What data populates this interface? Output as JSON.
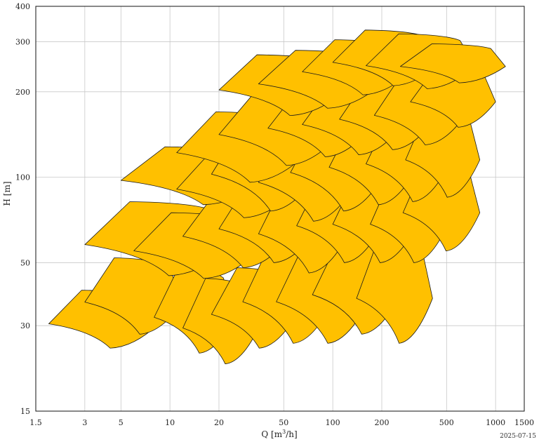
{
  "chart_data": {
    "type": "area",
    "xlabel_main": "Q [m",
    "xlabel_sup": "3",
    "xlabel_end": "/h]",
    "ylabel": "H [m]",
    "xscale": "log",
    "yscale": "log",
    "xlim": [
      1.5,
      1500
    ],
    "ylim": [
      15,
      400
    ],
    "xticks": [
      1.5,
      3,
      5,
      10,
      20,
      50,
      100,
      200,
      500,
      1000,
      1500
    ],
    "xtick_labels": [
      "1.5",
      "3",
      "5",
      "10",
      "20",
      "50",
      "100",
      "200",
      "500",
      "1000",
      "1500"
    ],
    "yticks": [
      15,
      30,
      50,
      100,
      200,
      300,
      400
    ],
    "ytick_labels": [
      "15",
      "30",
      "50",
      "100",
      "200",
      "300",
      "400"
    ],
    "grid": true,
    "fill_color": "#FFC000",
    "stroke_color": "#1a1a1a",
    "regions": [
      {
        "q": [
          1.8,
          8.5
        ],
        "h": [
          25,
          40
        ]
      },
      {
        "q": [
          3,
          12
        ],
        "h": [
          28,
          52
        ]
      },
      {
        "q": [
          8,
          25
        ],
        "h": [
          24,
          48
        ]
      },
      {
        "q": [
          12,
          35
        ],
        "h": [
          22,
          44
        ]
      },
      {
        "q": [
          18,
          60
        ],
        "h": [
          25,
          48
        ]
      },
      {
        "q": [
          28,
          100
        ],
        "h": [
          26,
          58
        ]
      },
      {
        "q": [
          45,
          165
        ],
        "h": [
          26,
          58
        ]
      },
      {
        "q": [
          75,
          260
        ],
        "h": [
          28,
          60
        ]
      },
      {
        "q": [
          140,
          410
        ],
        "h": [
          26,
          62
        ]
      },
      {
        "q": [
          3,
          25
        ],
        "h": [
          45,
          82
        ]
      },
      {
        "q": [
          6,
          35
        ],
        "h": [
          44,
          75
        ]
      },
      {
        "q": [
          12,
          55
        ],
        "h": [
          48,
          88
        ]
      },
      {
        "q": [
          20,
          80
        ],
        "h": [
          50,
          96
        ]
      },
      {
        "q": [
          35,
          125
        ],
        "h": [
          46,
          98
        ]
      },
      {
        "q": [
          60,
          200
        ],
        "h": [
          50,
          102
        ]
      },
      {
        "q": [
          100,
          330
        ],
        "h": [
          50,
          105
        ]
      },
      {
        "q": [
          170,
          510
        ],
        "h": [
          50,
          105
        ]
      },
      {
        "q": [
          270,
          800
        ],
        "h": [
          55,
          115
        ]
      },
      {
        "q": [
          5,
          40
        ],
        "h": [
          80,
          128
        ]
      },
      {
        "q": [
          11,
          60
        ],
        "h": [
          72,
          125
        ]
      },
      {
        "q": [
          18,
          80
        ],
        "h": [
          76,
          155
        ]
      },
      {
        "q": [
          35,
          140
        ],
        "h": [
          70,
          148
        ]
      },
      {
        "q": [
          55,
          210
        ],
        "h": [
          76,
          160
        ]
      },
      {
        "q": [
          95,
          330
        ],
        "h": [
          80,
          165
        ]
      },
      {
        "q": [
          160,
          520
        ],
        "h": [
          82,
          170
        ]
      },
      {
        "q": [
          280,
          800
        ],
        "h": [
          85,
          175
        ]
      },
      {
        "q": [
          11,
          70
        ],
        "h": [
          96,
          170
        ]
      },
      {
        "q": [
          20,
          110
        ],
        "h": [
          110,
          200
        ]
      },
      {
        "q": [
          40,
          170
        ],
        "h": [
          118,
          205
        ]
      },
      {
        "q": [
          65,
          270
        ],
        "h": [
          120,
          215
        ]
      },
      {
        "q": [
          110,
          420
        ],
        "h": [
          125,
          225
        ]
      },
      {
        "q": [
          180,
          650
        ],
        "h": [
          130,
          230
        ]
      },
      {
        "q": [
          300,
          1000
        ],
        "h": [
          150,
          245
        ]
      },
      {
        "q": [
          20,
          120
        ],
        "h": [
          165,
          270
        ]
      },
      {
        "q": [
          35,
          200
        ],
        "h": [
          175,
          280
        ]
      },
      {
        "q": [
          65,
          300
        ],
        "h": [
          195,
          305
        ]
      },
      {
        "q": [
          100,
          460
        ],
        "h": [
          210,
          330
        ]
      },
      {
        "q": [
          160,
          750
        ],
        "h": [
          205,
          320
        ]
      },
      {
        "q": [
          260,
          1150
        ],
        "h": [
          215,
          295
        ]
      }
    ]
  },
  "footer": {
    "date": "2025-07-15"
  }
}
